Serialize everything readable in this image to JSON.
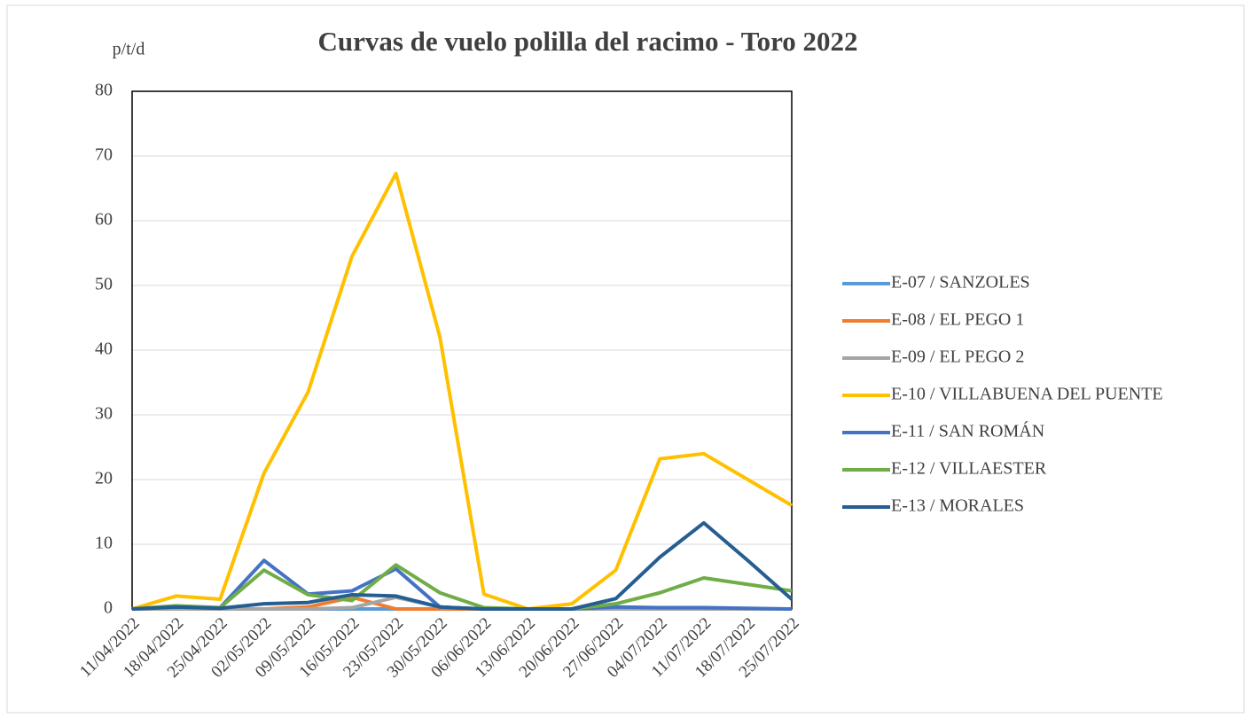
{
  "chart_data": {
    "type": "line",
    "title": "Curvas de vuelo polilla del racimo - Toro 2022",
    "y_label": "p/t/d",
    "categories": [
      "11/04/2022",
      "18/04/2022",
      "25/04/2022",
      "02/05/2022",
      "09/05/2022",
      "16/05/2022",
      "23/05/2022",
      "30/05/2022",
      "06/06/2022",
      "13/06/2022",
      "20/06/2022",
      "27/06/2022",
      "04/07/2022",
      "11/07/2022",
      "18/07/2022",
      "25/07/2022"
    ],
    "series": [
      {
        "name": "E-07 / SANZOLES",
        "color": "#5b9bd5",
        "values": [
          0,
          0,
          0,
          0,
          0,
          0,
          0,
          0,
          0,
          0,
          0,
          0,
          0,
          0,
          0,
          0
        ]
      },
      {
        "name": "E-08 / EL PEGO 1",
        "color": "#ed7d31",
        "values": [
          0,
          0,
          0,
          0,
          0.3,
          1.8,
          0,
          0,
          0,
          0,
          0,
          0,
          0,
          0,
          0,
          0
        ]
      },
      {
        "name": "E-09 / EL PEGO 2",
        "color": "#a5a5a5",
        "values": [
          0,
          0,
          0,
          0,
          0,
          0.2,
          1.8,
          0.3,
          0,
          0,
          0,
          0,
          0,
          0,
          0,
          0
        ]
      },
      {
        "name": "E-10 / VILLABUENA DEL PUENTE",
        "color": "#ffc000",
        "values": [
          0,
          2,
          1.5,
          21,
          33.5,
          54.5,
          67.3,
          42,
          2.3,
          0,
          0.8,
          6,
          23.2,
          24,
          20,
          16
        ]
      },
      {
        "name": "E-11 / SAN ROMÁN",
        "color": "#4472c4",
        "values": [
          0,
          0.3,
          0.2,
          7.5,
          2.3,
          2.8,
          6.2,
          0.3,
          0,
          0,
          0,
          0.3,
          0.2,
          0.2,
          0.1,
          0
        ]
      },
      {
        "name": "E-12 / VILLAESTER",
        "color": "#70ad47",
        "values": [
          0,
          0.5,
          0.2,
          6,
          2.2,
          1.3,
          6.8,
          2.5,
          0.2,
          0,
          0,
          0.8,
          2.5,
          4.8,
          3.8,
          2.8
        ]
      },
      {
        "name": "E-13 / MORALES",
        "color": "#255e91",
        "values": [
          0,
          0.3,
          0.1,
          0.8,
          1,
          2.2,
          2,
          0.3,
          0,
          0,
          0,
          1.6,
          8,
          13.3,
          7.5,
          1.5
        ]
      }
    ],
    "ylim": [
      0,
      80
    ],
    "yticks": [
      0,
      10,
      20,
      30,
      40,
      50,
      60,
      70,
      80
    ],
    "grid": true,
    "legend": "right"
  }
}
